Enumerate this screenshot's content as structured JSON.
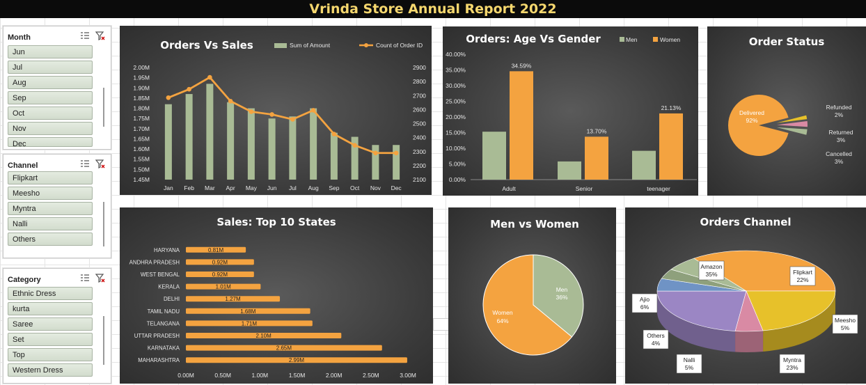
{
  "report_title": "Vrinda Store Annual Report 2022",
  "slicers": [
    {
      "id": "month",
      "title": "Month",
      "items": [
        "Jun",
        "Jul",
        "Aug",
        "Sep",
        "Oct",
        "Nov",
        "Dec"
      ]
    },
    {
      "id": "channel",
      "title": "Channel",
      "items": [
        "Flipkart",
        "Meesho",
        "Myntra",
        "Nalli",
        "Others"
      ]
    },
    {
      "id": "category",
      "title": "Category",
      "items": [
        "Ethnic Dress",
        "kurta",
        "Saree",
        "Set",
        "Top",
        "Western Dress"
      ]
    }
  ],
  "chart_data": [
    {
      "id": "orders_vs_sales",
      "type": "bar",
      "title": "Orders Vs Sales",
      "categories": [
        "Jan",
        "Feb",
        "Mar",
        "Apr",
        "May",
        "Jun",
        "Jul",
        "Aug",
        "Sep",
        "Oct",
        "Nov",
        "Dec"
      ],
      "series": [
        {
          "name": "Sum of Amount",
          "type": "bar",
          "axis": "left",
          "color": "#a9bb95",
          "values": [
            1.82,
            1.87,
            1.92,
            1.83,
            1.8,
            1.75,
            1.76,
            1.8,
            1.68,
            1.66,
            1.62,
            1.62
          ]
        },
        {
          "name": "Count of Order ID",
          "type": "line",
          "axis": "right",
          "color": "#f4a340",
          "values": [
            2685,
            2745,
            2830,
            2660,
            2585,
            2565,
            2530,
            2595,
            2425,
            2345,
            2290,
            2290
          ]
        }
      ],
      "y_left": {
        "min": 1.45,
        "max": 2.0,
        "ticks": [
          "1.45M",
          "1.50M",
          "1.55M",
          "1.60M",
          "1.65M",
          "1.70M",
          "1.75M",
          "1.80M",
          "1.85M",
          "1.90M",
          "1.95M",
          "2.00M"
        ]
      },
      "y_right": {
        "min": 2100,
        "max": 2900,
        "ticks": [
          "2100",
          "2200",
          "2300",
          "2400",
          "2500",
          "2600",
          "2700",
          "2800",
          "2900"
        ]
      },
      "legend_position": "top-right"
    },
    {
      "id": "age_vs_gender",
      "type": "bar",
      "title": "Orders: Age Vs Gender",
      "categories": [
        "Adult",
        "Senior",
        "teenager"
      ],
      "series": [
        {
          "name": "Men",
          "color": "#a9bb95",
          "values": [
            15.3,
            5.8,
            9.2
          ]
        },
        {
          "name": "Women",
          "color": "#f4a340",
          "values": [
            34.59,
            13.7,
            21.13
          ],
          "labels": [
            "34.59%",
            "13.70%",
            "21.13%"
          ]
        }
      ],
      "y_ticks": [
        "0.00%",
        "5.00%",
        "10.00%",
        "15.00%",
        "20.00%",
        "25.00%",
        "30.00%",
        "35.00%",
        "40.00%"
      ],
      "ylim": [
        0,
        40
      ],
      "legend_position": "top-right"
    },
    {
      "id": "order_status",
      "type": "pie",
      "title": "Order Status",
      "slices": [
        {
          "name": "Delivered",
          "value": 92,
          "label": "92%",
          "color": "#f4a340"
        },
        {
          "name": "Refunded",
          "value": 2,
          "label": "2%",
          "color": "#e7c12a"
        },
        {
          "name": "Returned",
          "value": 3,
          "label": "3%",
          "color": "#d98aa4"
        },
        {
          "name": "Cancelled",
          "value": 3,
          "label": "3%",
          "color": "#a9bb95"
        }
      ]
    },
    {
      "id": "top_states",
      "type": "bar",
      "orientation": "horizontal",
      "title": "Sales: Top 10 States",
      "categories": [
        "HARYANA",
        "ANDHRA PRADESH",
        "WEST BENGAL",
        "KERALA",
        "DELHI",
        "TAMIL NADU",
        "TELANGANA",
        "UTTAR PRADESH",
        "KARNATAKA",
        "MAHARASHTRA"
      ],
      "values": [
        0.81,
        0.92,
        0.92,
        1.01,
        1.27,
        1.68,
        1.71,
        2.1,
        2.65,
        2.99
      ],
      "labels": [
        "0.81M",
        "0.92M",
        "0.92M",
        "1.01M",
        "1.27M",
        "1.68M",
        "1.71M",
        "2.10M",
        "2.65M",
        "2.99M"
      ],
      "x_ticks": [
        "0.00M",
        "0.50M",
        "1.00M",
        "1.50M",
        "2.00M",
        "2.50M",
        "3.00M"
      ],
      "xlim": [
        0,
        3
      ],
      "color": "#f4a340"
    },
    {
      "id": "men_vs_women",
      "type": "pie",
      "title": "Men vs Women",
      "slices": [
        {
          "name": "Men",
          "value": 36,
          "label": "36%",
          "color": "#a9bb95"
        },
        {
          "name": "Women",
          "value": 64,
          "label": "64%",
          "color": "#f4a340"
        }
      ]
    },
    {
      "id": "orders_channel",
      "type": "pie",
      "title": "Orders Channel",
      "slices": [
        {
          "name": "Amazon",
          "value": 35,
          "label": "35%",
          "color": "#f4a340"
        },
        {
          "name": "Flipkart",
          "value": 22,
          "label": "22%",
          "color": "#e7c12a"
        },
        {
          "name": "Meesho",
          "value": 5,
          "label": "5%",
          "color": "#d98aa4"
        },
        {
          "name": "Myntra",
          "value": 23,
          "label": "23%",
          "color": "#9b86c4"
        },
        {
          "name": "Nalli",
          "value": 5,
          "label": "5%",
          "color": "#6f93c5"
        },
        {
          "name": "Others",
          "value": 4,
          "label": "4%",
          "color": "#8ea07c"
        },
        {
          "name": "Ajio",
          "value": 6,
          "label": "6%",
          "color": "#a9bb95"
        }
      ]
    }
  ]
}
